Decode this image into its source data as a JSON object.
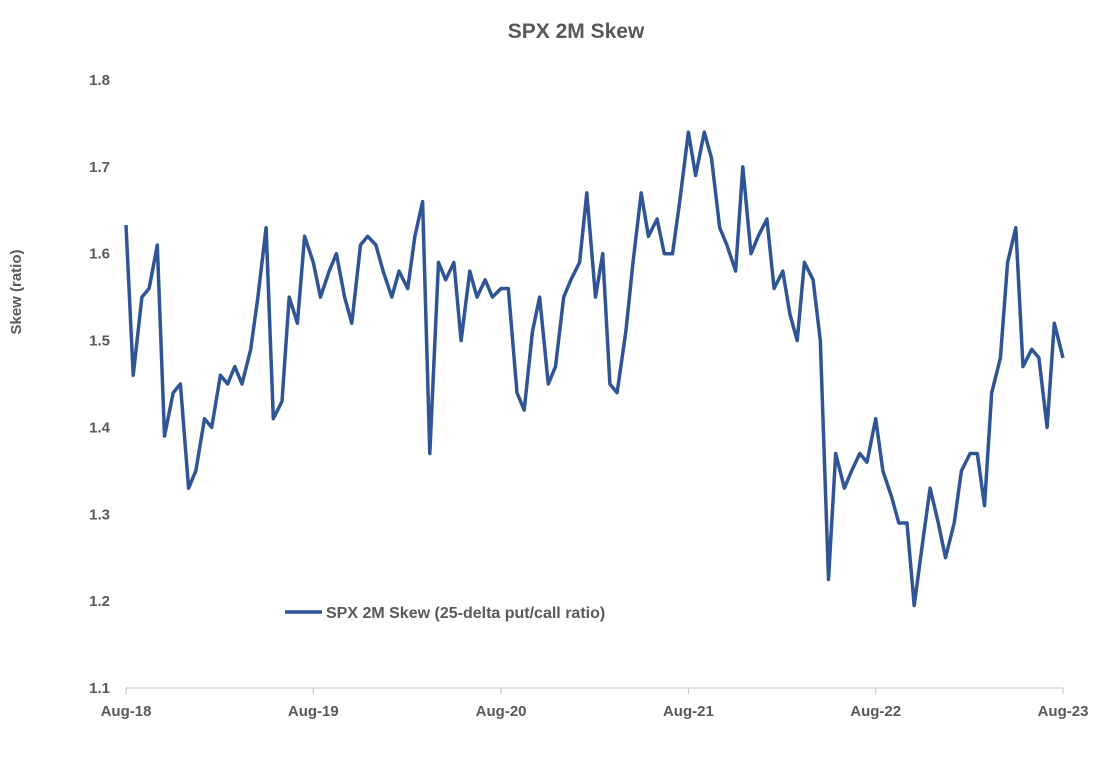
{
  "chart_data": {
    "type": "line",
    "title": "SPX 2M Skew",
    "xlabel": "",
    "ylabel": "Skew (ratio)",
    "ylim": [
      1.1,
      1.8
    ],
    "yticks": [
      "1.1",
      "1.2",
      "1.3",
      "1.4",
      "1.5",
      "1.6",
      "1.7",
      "1.8"
    ],
    "xticks": [
      {
        "label": "Aug-18",
        "date": "2018-08-01"
      },
      {
        "label": "Aug-19",
        "date": "2019-08-01"
      },
      {
        "label": "Aug-20",
        "date": "2020-08-01"
      },
      {
        "label": "Aug-21",
        "date": "2021-08-01"
      },
      {
        "label": "Aug-22",
        "date": "2022-08-01"
      },
      {
        "label": "Aug-23",
        "date": "2023-08-01"
      }
    ],
    "grid": false,
    "legend_position": "bottom-left (inside)",
    "series": [
      {
        "name": "SPX 2M Skew (25-delta put/call ratio)",
        "color": "#2F5597",
        "x": [
          "2018-08-01",
          "2018-08-15",
          "2018-09-01",
          "2018-09-15",
          "2018-10-01",
          "2018-10-15",
          "2018-11-01",
          "2018-11-15",
          "2018-12-01",
          "2018-12-15",
          "2019-01-01",
          "2019-01-15",
          "2019-02-01",
          "2019-02-15",
          "2019-03-01",
          "2019-03-15",
          "2019-04-01",
          "2019-04-15",
          "2019-05-01",
          "2019-05-15",
          "2019-06-01",
          "2019-06-15",
          "2019-07-01",
          "2019-07-15",
          "2019-08-01",
          "2019-08-15",
          "2019-09-01",
          "2019-09-15",
          "2019-10-01",
          "2019-10-15",
          "2019-11-01",
          "2019-11-15",
          "2019-12-01",
          "2019-12-15",
          "2020-01-01",
          "2020-01-15",
          "2020-02-01",
          "2020-02-15",
          "2020-03-01",
          "2020-03-15",
          "2020-04-01",
          "2020-04-15",
          "2020-05-01",
          "2020-05-15",
          "2020-06-01",
          "2020-06-15",
          "2020-07-01",
          "2020-07-15",
          "2020-08-01",
          "2020-08-15",
          "2020-09-01",
          "2020-09-15",
          "2020-10-01",
          "2020-10-15",
          "2020-11-01",
          "2020-11-15",
          "2020-12-01",
          "2020-12-15",
          "2021-01-01",
          "2021-01-15",
          "2021-02-01",
          "2021-02-15",
          "2021-03-01",
          "2021-03-15",
          "2021-04-01",
          "2021-04-15",
          "2021-05-01",
          "2021-05-15",
          "2021-06-01",
          "2021-06-15",
          "2021-07-01",
          "2021-07-15",
          "2021-08-01",
          "2021-08-15",
          "2021-09-01",
          "2021-09-15",
          "2021-10-01",
          "2021-10-15",
          "2021-11-01",
          "2021-11-15",
          "2021-12-01",
          "2021-12-15",
          "2022-01-01",
          "2022-01-15",
          "2022-02-01",
          "2022-02-15",
          "2022-03-01",
          "2022-03-15",
          "2022-04-01",
          "2022-04-15",
          "2022-05-01",
          "2022-05-15",
          "2022-06-01",
          "2022-06-15",
          "2022-07-01",
          "2022-07-15",
          "2022-08-01",
          "2022-08-15",
          "2022-09-01",
          "2022-09-15",
          "2022-10-01",
          "2022-10-15",
          "2022-11-01",
          "2022-11-15",
          "2022-12-01",
          "2022-12-15",
          "2023-01-01",
          "2023-01-15",
          "2023-02-01",
          "2023-02-15",
          "2023-03-01",
          "2023-03-15",
          "2023-04-01",
          "2023-04-15",
          "2023-05-01",
          "2023-05-15",
          "2023-06-01",
          "2023-06-15",
          "2023-07-01",
          "2023-07-15",
          "2023-08-01"
        ],
        "y": [
          1.633,
          1.46,
          1.55,
          1.56,
          1.61,
          1.39,
          1.44,
          1.45,
          1.33,
          1.35,
          1.41,
          1.4,
          1.46,
          1.45,
          1.47,
          1.45,
          1.49,
          1.55,
          1.63,
          1.41,
          1.43,
          1.55,
          1.52,
          1.62,
          1.59,
          1.55,
          1.58,
          1.6,
          1.55,
          1.52,
          1.61,
          1.62,
          1.61,
          1.58,
          1.55,
          1.58,
          1.56,
          1.62,
          1.66,
          1.37,
          1.59,
          1.57,
          1.59,
          1.5,
          1.58,
          1.55,
          1.57,
          1.55,
          1.56,
          1.56,
          1.44,
          1.42,
          1.51,
          1.55,
          1.45,
          1.47,
          1.55,
          1.57,
          1.59,
          1.67,
          1.55,
          1.6,
          1.45,
          1.44,
          1.51,
          1.59,
          1.67,
          1.62,
          1.64,
          1.6,
          1.6,
          1.66,
          1.74,
          1.69,
          1.74,
          1.71,
          1.63,
          1.61,
          1.58,
          1.7,
          1.6,
          1.62,
          1.64,
          1.56,
          1.58,
          1.53,
          1.5,
          1.59,
          1.57,
          1.5,
          1.225,
          1.37,
          1.33,
          1.35,
          1.37,
          1.36,
          1.41,
          1.35,
          1.32,
          1.29,
          1.29,
          1.195,
          1.27,
          1.33,
          1.29,
          1.25,
          1.29,
          1.35,
          1.37,
          1.37,
          1.31,
          1.44,
          1.48,
          1.59,
          1.63,
          1.47,
          1.49,
          1.48,
          1.4,
          1.52,
          1.48
        ]
      }
    ]
  }
}
